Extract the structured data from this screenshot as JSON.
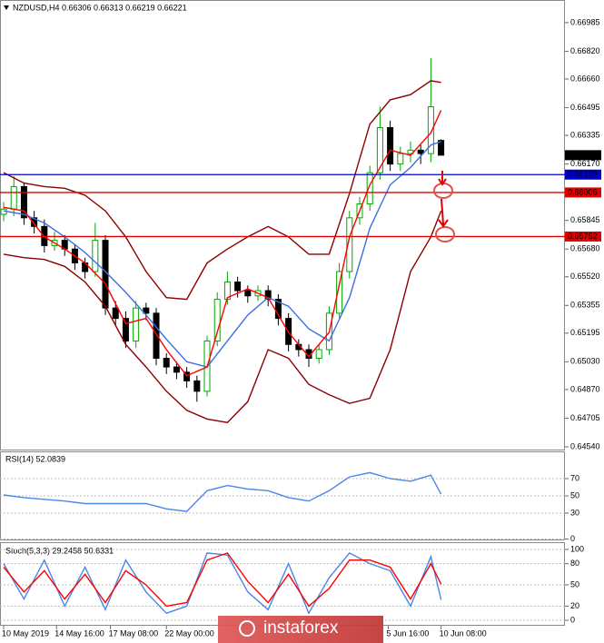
{
  "watermark": "instaforex",
  "chart_data": [
    {
      "type": "candlestick",
      "title": "NZDUSD,H4  0.66306 0.66313 0.66219 0.66221",
      "xlim": [
        -0.36,
        55.18
      ],
      "ylim": [
        0.64524,
        0.67105
      ],
      "yticks": [
        0.66985,
        {
          "value": 0.6682,
          "label": "0.66820"
        },
        {
          "value": 0.6666,
          "label": "0.66660"
        },
        0.66495,
        0.66335,
        {
          "value": 0.6617,
          "label": "0.66170"
        },
        0.65845,
        {
          "value": 0.6568,
          "label": "0.65680"
        },
        {
          "value": 0.6552,
          "label": "0.65520"
        },
        0.65355,
        0.65195,
        {
          "value": 0.6503,
          "label": "0.65030"
        },
        {
          "value": 0.6487,
          "label": "0.64870"
        },
        0.64705,
        {
          "value": 0.6454,
          "label": "0.64540"
        }
      ],
      "up_color": "#00a800",
      "down_color": "#000000",
      "open": [
        0.6588,
        0.6591,
        0.6604,
        0.6586,
        0.6581,
        0.657,
        0.6573,
        0.6568,
        0.656,
        0.6555,
        0.6573,
        0.6534,
        0.6528,
        0.6515,
        0.6534,
        0.6531,
        0.6505,
        0.65,
        0.6497,
        0.6492,
        0.6486,
        0.6515,
        0.6539,
        0.6549,
        0.6544,
        0.6541,
        0.6544,
        0.6539,
        0.6528,
        0.6513,
        0.651,
        0.6505,
        0.651,
        0.6531,
        0.6555,
        0.6586,
        0.6594,
        0.6612,
        0.6638,
        0.6617,
        0.6623,
        0.6625,
        0.6623,
        0.66306
      ],
      "high": [
        0.6595,
        0.661,
        0.6606,
        0.659,
        0.6585,
        0.6578,
        0.6576,
        0.6571,
        0.6563,
        0.6583,
        0.6576,
        0.6538,
        0.6532,
        0.6538,
        0.6537,
        0.6534,
        0.6508,
        0.6503,
        0.65,
        0.6495,
        0.6518,
        0.6543,
        0.6555,
        0.6552,
        0.6547,
        0.6547,
        0.6547,
        0.6542,
        0.6531,
        0.6516,
        0.6513,
        0.6513,
        0.6535,
        0.656,
        0.659,
        0.6598,
        0.6616,
        0.665,
        0.6642,
        0.6627,
        0.663,
        0.6628,
        0.6678,
        0.66313
      ],
      "low": [
        0.6584,
        0.6587,
        0.6582,
        0.6577,
        0.6566,
        0.6567,
        0.6564,
        0.6556,
        0.6551,
        0.6552,
        0.653,
        0.6524,
        0.6511,
        0.6511,
        0.6527,
        0.6501,
        0.6496,
        0.6493,
        0.6488,
        0.648,
        0.6483,
        0.6512,
        0.6536,
        0.654,
        0.6537,
        0.6538,
        0.6535,
        0.6524,
        0.6509,
        0.6506,
        0.65,
        0.6502,
        0.6507,
        0.6528,
        0.6551,
        0.6582,
        0.659,
        0.6608,
        0.6613,
        0.6613,
        0.6618,
        0.6617,
        0.6618,
        0.66219
      ],
      "close": [
        0.6591,
        0.6604,
        0.6586,
        0.6581,
        0.657,
        0.6573,
        0.6568,
        0.656,
        0.6555,
        0.6573,
        0.6534,
        0.6528,
        0.6515,
        0.6534,
        0.6531,
        0.6505,
        0.65,
        0.6497,
        0.6492,
        0.6486,
        0.6515,
        0.6539,
        0.6549,
        0.6544,
        0.6541,
        0.6544,
        0.6539,
        0.6528,
        0.6513,
        0.651,
        0.6505,
        0.651,
        0.6531,
        0.6555,
        0.6586,
        0.6594,
        0.6612,
        0.6638,
        0.6617,
        0.6623,
        0.6625,
        0.6623,
        0.665,
        0.66221
      ],
      "series": [
        {
          "color": "#8b0000",
          "x": [
            0,
            2,
            4,
            6,
            8,
            10,
            12,
            14,
            16,
            18,
            20,
            22,
            24,
            26,
            28,
            30,
            32,
            34,
            36,
            38,
            40,
            42,
            43
          ],
          "values": [
            0.6612,
            0.6606,
            0.6604,
            0.6603,
            0.6599,
            0.659,
            0.6575,
            0.6555,
            0.654,
            0.6539,
            0.656,
            0.6568,
            0.6575,
            0.6581,
            0.6575,
            0.6565,
            0.6565,
            0.66,
            0.664,
            0.6654,
            0.6657,
            0.6665,
            0.6664
          ]
        },
        {
          "color": "#8b0000",
          "x": [
            0,
            2,
            4,
            6,
            8,
            10,
            12,
            14,
            16,
            18,
            20,
            22,
            24,
            26,
            28,
            30,
            32,
            34,
            36,
            38,
            40,
            42,
            43
          ],
          "values": [
            0.6565,
            0.6563,
            0.6562,
            0.6558,
            0.6549,
            0.6535,
            0.6513,
            0.65,
            0.6486,
            0.6475,
            0.647,
            0.6468,
            0.648,
            0.651,
            0.6505,
            0.649,
            0.6484,
            0.6479,
            0.6482,
            0.651,
            0.6555,
            0.6575,
            0.659
          ]
        },
        {
          "color": "#3a6fe0",
          "x": [
            0,
            2,
            4,
            6,
            8,
            10,
            12,
            14,
            16,
            18,
            20,
            22,
            24,
            26,
            28,
            30,
            32,
            34,
            36,
            38,
            40,
            42,
            43
          ],
          "values": [
            0.659,
            0.6588,
            0.6583,
            0.6575,
            0.6566,
            0.6555,
            0.6543,
            0.653,
            0.6516,
            0.6503,
            0.65,
            0.6515,
            0.653,
            0.654,
            0.6535,
            0.6522,
            0.6515,
            0.654,
            0.658,
            0.6605,
            0.6615,
            0.6628,
            0.663
          ]
        },
        {
          "color": "#ff0000",
          "x": [
            0,
            2,
            4,
            6,
            8,
            10,
            12,
            14,
            16,
            18,
            20,
            22,
            24,
            26,
            28,
            30,
            32,
            34,
            36,
            38,
            40,
            42,
            43
          ],
          "values": [
            0.6592,
            0.659,
            0.6575,
            0.6568,
            0.656,
            0.6548,
            0.6525,
            0.6528,
            0.651,
            0.6495,
            0.65,
            0.654,
            0.6545,
            0.654,
            0.652,
            0.6506,
            0.652,
            0.6575,
            0.6605,
            0.6625,
            0.6622,
            0.6635,
            0.6648
          ]
        }
      ],
      "levels": [
        {
          "value": 0.66109,
          "color": "#0000cc"
        },
        {
          "value": 0.66006,
          "color": "#e00000"
        },
        {
          "value": 0.65752,
          "color": "#e00000"
        }
      ]
    },
    {
      "type": "line",
      "title": "RSI(14) 52.0839",
      "xlim": [
        -0.36,
        55.18
      ],
      "ylim": [
        0,
        100
      ],
      "yticks": [
        0,
        30,
        50,
        70
      ],
      "grid": true,
      "series": [
        {
          "color": "#4a86e8",
          "x": [
            0,
            2,
            4,
            6,
            8,
            10,
            12,
            14,
            16,
            18,
            20,
            22,
            24,
            26,
            28,
            30,
            32,
            34,
            36,
            38,
            40,
            42,
            43
          ],
          "values": [
            51,
            48,
            46,
            44,
            41,
            41,
            41,
            41,
            35,
            32,
            56,
            62,
            58,
            56,
            48,
            44,
            56,
            72,
            77,
            70,
            67,
            74,
            52
          ]
        }
      ]
    },
    {
      "type": "line",
      "title": "Stoch(5,3,3) 29.2458 50.6331",
      "xlim": [
        -0.36,
        55.18
      ],
      "ylim": [
        0,
        100
      ],
      "yticks": [
        0,
        20,
        50,
        80,
        100
      ],
      "grid": true,
      "xticks": [
        {
          "value": 0,
          "label": "10 May 2019"
        },
        {
          "value": 5.2,
          "label": "14 May 16:00"
        },
        {
          "value": 10.5,
          "label": "17 May 08:00"
        },
        {
          "value": 16,
          "label": "22 May 00:00"
        },
        {
          "value": 37.8,
          "label": "5 Jun 16:00"
        },
        {
          "value": 43,
          "label": "10 Jun 08:00"
        }
      ],
      "series": [
        {
          "color": "#4a86e8",
          "x": [
            0,
            2,
            4,
            6,
            8,
            10,
            12,
            14,
            16,
            18,
            20,
            22,
            24,
            26,
            28,
            30,
            32,
            34,
            36,
            38,
            40,
            42,
            43
          ],
          "values": [
            80,
            30,
            85,
            20,
            75,
            15,
            85,
            40,
            10,
            20,
            95,
            92,
            40,
            15,
            80,
            10,
            60,
            95,
            80,
            70,
            20,
            90,
            29
          ]
        },
        {
          "color": "#ff0000",
          "x": [
            0,
            2,
            4,
            6,
            8,
            10,
            12,
            14,
            16,
            18,
            20,
            22,
            24,
            26,
            28,
            30,
            32,
            34,
            36,
            38,
            40,
            42,
            43
          ],
          "values": [
            75,
            40,
            70,
            30,
            65,
            25,
            70,
            50,
            20,
            25,
            85,
            95,
            55,
            25,
            65,
            20,
            45,
            85,
            85,
            75,
            30,
            80,
            51
          ]
        }
      ]
    }
  ]
}
